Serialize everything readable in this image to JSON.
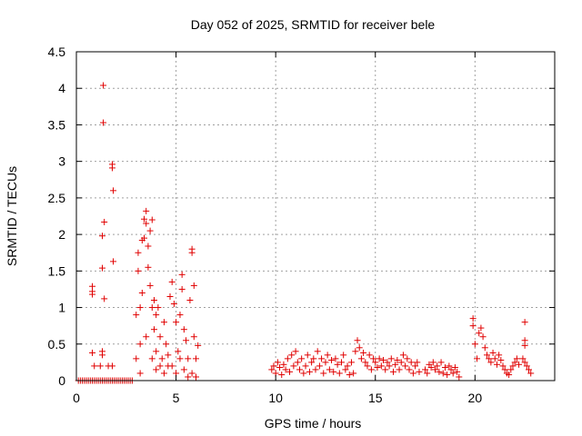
{
  "chart_data": {
    "type": "scatter",
    "title": "Day 052 of 2025, SRMTID for receiver bele",
    "xlabel": "GPS time / hours",
    "ylabel": "SRMTID / TECUs",
    "xlim": [
      0,
      24
    ],
    "ylim": [
      0,
      4.5
    ],
    "x_ticks": [
      0,
      5,
      10,
      15,
      20
    ],
    "x_tick_labels": [
      "0",
      "5",
      "10",
      "15",
      "20"
    ],
    "y_ticks": [
      0,
      0.5,
      1,
      1.5,
      2,
      2.5,
      3,
      3.5,
      4,
      4.5
    ],
    "y_tick_labels": [
      "0",
      "0.5",
      "1",
      "1.5",
      "2",
      "2.5",
      "3",
      "3.5",
      "4",
      "4.5"
    ],
    "grid": true,
    "marker": "+",
    "series": [
      {
        "name": "SRMTID",
        "color": "#e00000",
        "points": [
          [
            0.1,
            0
          ],
          [
            0.2,
            0
          ],
          [
            0.3,
            0
          ],
          [
            0.4,
            0
          ],
          [
            0.5,
            0
          ],
          [
            0.6,
            0
          ],
          [
            0.7,
            0
          ],
          [
            0.8,
            0
          ],
          [
            0.9,
            0
          ],
          [
            1.0,
            0
          ],
          [
            1.1,
            0
          ],
          [
            1.2,
            0
          ],
          [
            1.3,
            0
          ],
          [
            1.4,
            0
          ],
          [
            1.5,
            0
          ],
          [
            1.6,
            0
          ],
          [
            1.7,
            0
          ],
          [
            1.8,
            0
          ],
          [
            1.9,
            0
          ],
          [
            2.0,
            0
          ],
          [
            2.1,
            0
          ],
          [
            2.2,
            0
          ],
          [
            2.3,
            0
          ],
          [
            2.4,
            0
          ],
          [
            2.5,
            0
          ],
          [
            2.6,
            0
          ],
          [
            2.7,
            0
          ],
          [
            2.8,
            0
          ],
          [
            0.8,
            1.29
          ],
          [
            0.8,
            1.22
          ],
          [
            0.8,
            1.18
          ],
          [
            0.8,
            0.38
          ],
          [
            0.9,
            0.2
          ],
          [
            1.2,
            0.2
          ],
          [
            1.3,
            0.4
          ],
          [
            1.3,
            0.35
          ],
          [
            1.35,
            4.04
          ],
          [
            1.35,
            3.53
          ],
          [
            1.3,
            1.98
          ],
          [
            1.4,
            2.17
          ],
          [
            1.3,
            1.54
          ],
          [
            1.4,
            1.12
          ],
          [
            1.8,
            2.96
          ],
          [
            1.8,
            2.91
          ],
          [
            1.85,
            2.6
          ],
          [
            1.85,
            1.63
          ],
          [
            1.6,
            0.2
          ],
          [
            1.8,
            0.2
          ],
          [
            3.0,
            0.9
          ],
          [
            3.1,
            1.75
          ],
          [
            3.1,
            1.5
          ],
          [
            3.2,
            1.0
          ],
          [
            3.2,
            0.5
          ],
          [
            3.3,
            1.92
          ],
          [
            3.3,
            1.2
          ],
          [
            3.4,
            2.21
          ],
          [
            3.4,
            1.95
          ],
          [
            3.5,
            2.32
          ],
          [
            3.5,
            2.15
          ],
          [
            3.6,
            1.84
          ],
          [
            3.6,
            1.55
          ],
          [
            3.7,
            2.05
          ],
          [
            3.7,
            1.3
          ],
          [
            3.8,
            2.2
          ],
          [
            3.8,
            1.0
          ],
          [
            3.9,
            1.1
          ],
          [
            3.9,
            0.7
          ],
          [
            4.0,
            0.9
          ],
          [
            4.0,
            0.4
          ],
          [
            4.1,
            1.0
          ],
          [
            4.2,
            0.6
          ],
          [
            4.3,
            0.3
          ],
          [
            4.4,
            0.8
          ],
          [
            4.5,
            0.5
          ],
          [
            4.6,
            0.2
          ],
          [
            4.7,
            1.15
          ],
          [
            4.8,
            1.35
          ],
          [
            4.9,
            1.05
          ],
          [
            5.0,
            0.8
          ],
          [
            5.1,
            0.4
          ],
          [
            5.2,
            0.9
          ],
          [
            5.3,
            1.25
          ],
          [
            5.3,
            1.45
          ],
          [
            5.4,
            0.7
          ],
          [
            5.5,
            0.55
          ],
          [
            5.6,
            0.3
          ],
          [
            5.7,
            1.1
          ],
          [
            5.8,
            1.75
          ],
          [
            5.8,
            1.8
          ],
          [
            5.9,
            1.3
          ],
          [
            5.9,
            0.6
          ],
          [
            6.0,
            0.3
          ],
          [
            6.1,
            0.48
          ],
          [
            3.0,
            0.3
          ],
          [
            3.2,
            0.1
          ],
          [
            3.5,
            0.6
          ],
          [
            3.8,
            0.3
          ],
          [
            4.0,
            0.15
          ],
          [
            4.2,
            0.2
          ],
          [
            4.4,
            0.1
          ],
          [
            4.6,
            0.35
          ],
          [
            4.8,
            0.2
          ],
          [
            5.0,
            0.1
          ],
          [
            5.2,
            0.3
          ],
          [
            5.4,
            0.15
          ],
          [
            5.6,
            0.05
          ],
          [
            5.8,
            0.1
          ],
          [
            6.0,
            0.05
          ],
          [
            9.8,
            0.15
          ],
          [
            9.9,
            0.2
          ],
          [
            10.0,
            0.1
          ],
          [
            10.1,
            0.25
          ],
          [
            10.2,
            0.18
          ],
          [
            10.3,
            0.08
          ],
          [
            10.4,
            0.22
          ],
          [
            10.5,
            0.15
          ],
          [
            10.6,
            0.3
          ],
          [
            10.7,
            0.12
          ],
          [
            10.8,
            0.35
          ],
          [
            10.9,
            0.2
          ],
          [
            11.0,
            0.4
          ],
          [
            11.1,
            0.25
          ],
          [
            11.2,
            0.15
          ],
          [
            11.3,
            0.3
          ],
          [
            11.4,
            0.1
          ],
          [
            11.5,
            0.2
          ],
          [
            11.6,
            0.35
          ],
          [
            11.7,
            0.12
          ],
          [
            11.8,
            0.25
          ],
          [
            11.9,
            0.3
          ],
          [
            12.0,
            0.15
          ],
          [
            12.1,
            0.4
          ],
          [
            12.2,
            0.2
          ],
          [
            12.3,
            0.3
          ],
          [
            12.4,
            0.1
          ],
          [
            12.5,
            0.25
          ],
          [
            12.6,
            0.35
          ],
          [
            12.7,
            0.15
          ],
          [
            12.8,
            0.28
          ],
          [
            12.9,
            0.12
          ],
          [
            13.0,
            0.3
          ],
          [
            13.1,
            0.22
          ],
          [
            13.2,
            0.1
          ],
          [
            13.3,
            0.25
          ],
          [
            13.4,
            0.35
          ],
          [
            13.5,
            0.15
          ],
          [
            13.6,
            0.2
          ],
          [
            13.7,
            0.08
          ],
          [
            13.8,
            0.25
          ],
          [
            13.9,
            0.1
          ],
          [
            14.0,
            0.4
          ],
          [
            14.1,
            0.55
          ],
          [
            14.2,
            0.45
          ],
          [
            14.3,
            0.3
          ],
          [
            14.4,
            0.38
          ],
          [
            14.5,
            0.25
          ],
          [
            14.6,
            0.2
          ],
          [
            14.7,
            0.35
          ],
          [
            14.8,
            0.15
          ],
          [
            14.9,
            0.3
          ],
          [
            15.0,
            0.25
          ],
          [
            15.1,
            0.18
          ],
          [
            15.2,
            0.3
          ],
          [
            15.3,
            0.2
          ],
          [
            15.4,
            0.28
          ],
          [
            15.5,
            0.15
          ],
          [
            15.6,
            0.25
          ],
          [
            15.7,
            0.2
          ],
          [
            15.8,
            0.3
          ],
          [
            15.9,
            0.12
          ],
          [
            16.0,
            0.22
          ],
          [
            16.1,
            0.28
          ],
          [
            16.2,
            0.15
          ],
          [
            16.3,
            0.25
          ],
          [
            16.4,
            0.35
          ],
          [
            16.5,
            0.2
          ],
          [
            16.6,
            0.3
          ],
          [
            16.7,
            0.15
          ],
          [
            16.8,
            0.25
          ],
          [
            16.9,
            0.1
          ],
          [
            17.0,
            0.2
          ],
          [
            17.1,
            0.25
          ],
          [
            17.2,
            0.12
          ],
          [
            17.5,
            0.15
          ],
          [
            17.6,
            0.1
          ],
          [
            17.7,
            0.22
          ],
          [
            17.8,
            0.18
          ],
          [
            17.9,
            0.25
          ],
          [
            18.0,
            0.15
          ],
          [
            18.1,
            0.2
          ],
          [
            18.2,
            0.12
          ],
          [
            18.3,
            0.25
          ],
          [
            18.4,
            0.1
          ],
          [
            18.5,
            0.18
          ],
          [
            18.6,
            0.08
          ],
          [
            18.7,
            0.2
          ],
          [
            18.8,
            0.15
          ],
          [
            18.9,
            0.1
          ],
          [
            19.0,
            0.18
          ],
          [
            19.1,
            0.12
          ],
          [
            19.2,
            0.05
          ],
          [
            19.9,
            0.85
          ],
          [
            19.9,
            0.75
          ],
          [
            20.0,
            0.5
          ],
          [
            20.1,
            0.3
          ],
          [
            20.2,
            0.65
          ],
          [
            20.3,
            0.72
          ],
          [
            20.4,
            0.6
          ],
          [
            20.5,
            0.45
          ],
          [
            20.6,
            0.35
          ],
          [
            20.7,
            0.3
          ],
          [
            20.8,
            0.25
          ],
          [
            20.9,
            0.38
          ],
          [
            21.0,
            0.3
          ],
          [
            21.1,
            0.22
          ],
          [
            21.2,
            0.35
          ],
          [
            21.3,
            0.28
          ],
          [
            21.4,
            0.2
          ],
          [
            21.5,
            0.15
          ],
          [
            21.6,
            0.1
          ],
          [
            21.7,
            0.08
          ],
          [
            21.8,
            0.15
          ],
          [
            21.9,
            0.2
          ],
          [
            22.0,
            0.25
          ],
          [
            22.1,
            0.3
          ],
          [
            22.2,
            0.22
          ],
          [
            22.5,
            0.8
          ],
          [
            22.5,
            0.55
          ],
          [
            22.5,
            0.48
          ],
          [
            22.4,
            0.3
          ],
          [
            22.5,
            0.25
          ],
          [
            22.6,
            0.2
          ],
          [
            22.7,
            0.15
          ],
          [
            22.8,
            0.1
          ]
        ]
      }
    ]
  }
}
